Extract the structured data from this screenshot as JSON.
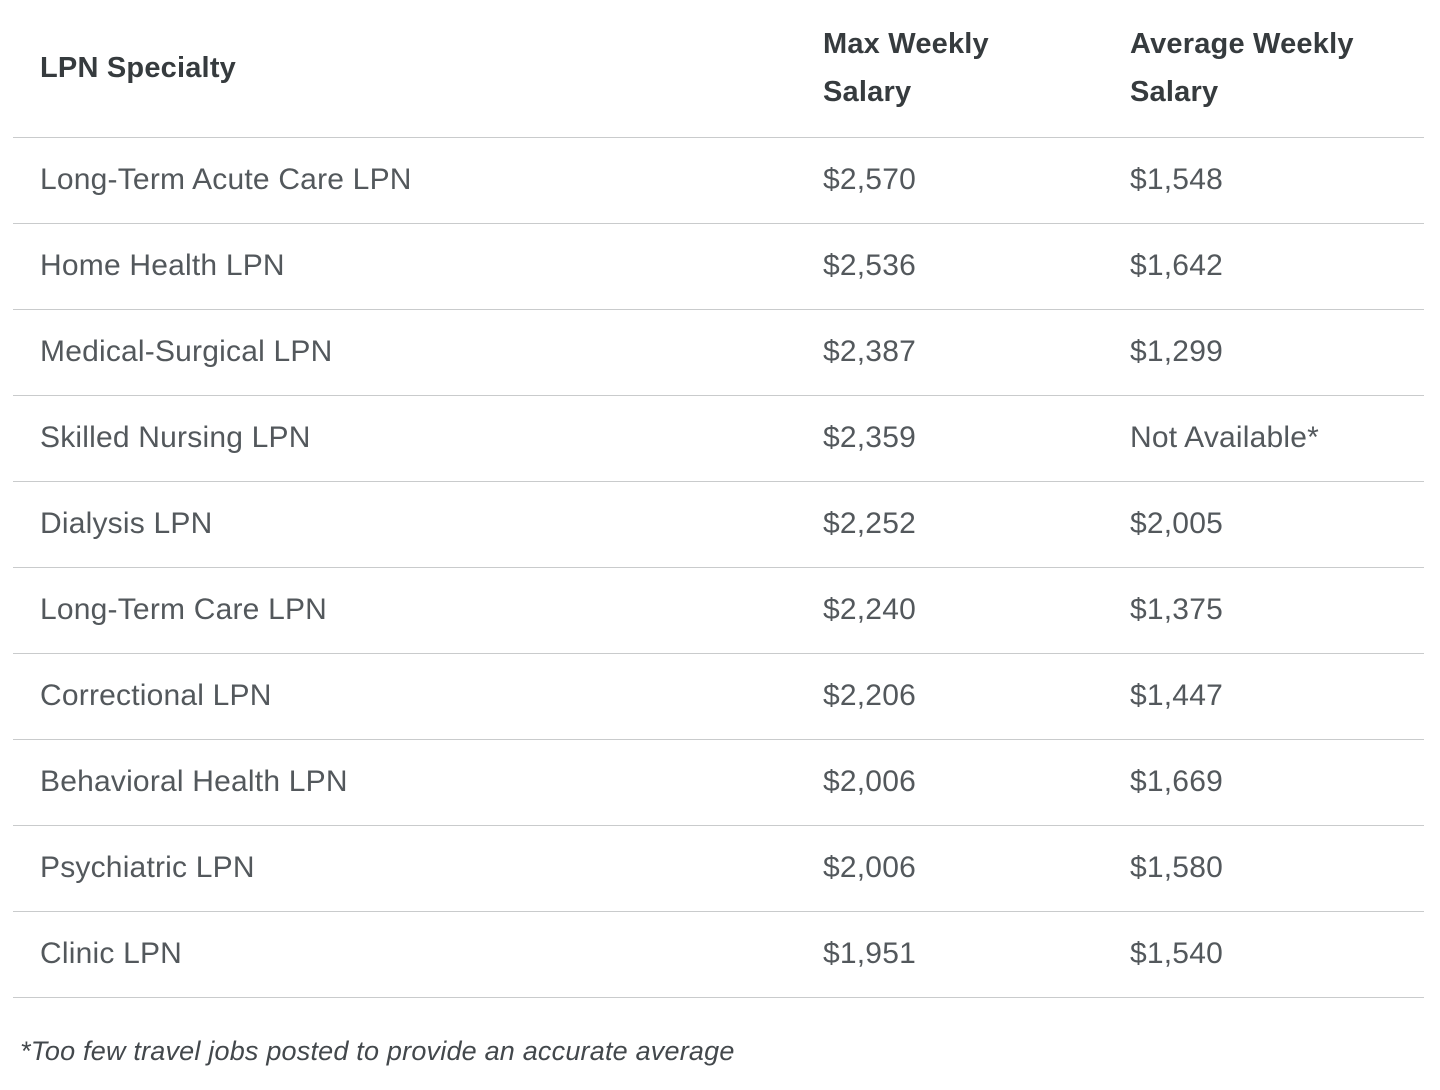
{
  "chart_data": {
    "type": "table",
    "title": "",
    "columns": [
      "LPN Specialty",
      "Max Weekly Salary",
      "Average Weekly Salary"
    ],
    "rows": [
      [
        "Long-Term Acute Care LPN",
        "$2,570",
        "$1,548"
      ],
      [
        "Home Health LPN",
        "$2,536",
        "$1,642"
      ],
      [
        "Medical-Surgical LPN",
        "$2,387",
        "$1,299"
      ],
      [
        "Skilled Nursing LPN",
        "$2,359",
        "Not Available*"
      ],
      [
        "Dialysis LPN",
        "$2,252",
        "$2,005"
      ],
      [
        "Long-Term Care LPN",
        "$2,240",
        "$1,375"
      ],
      [
        "Correctional LPN",
        "$2,206",
        "$1,447"
      ],
      [
        "Behavioral Health LPN",
        "$2,006",
        "$1,669"
      ],
      [
        "Psychiatric LPN",
        "$2,006",
        "$1,580"
      ],
      [
        "Clinic LPN",
        "$1,951",
        "$1,540"
      ]
    ],
    "footnote": "*Too few travel jobs posted to provide an accurate average"
  },
  "table": {
    "header": {
      "col1": "LPN Specialty",
      "col2_line1": "Max Weekly",
      "col2_line2": "Salary",
      "col3_line1": "Average Weekly",
      "col3_line2": "Salary"
    },
    "rows": [
      {
        "specialty": "Long-Term Acute Care LPN",
        "max": "$2,570",
        "avg": "$1,548"
      },
      {
        "specialty": "Home Health LPN",
        "max": "$2,536",
        "avg": "$1,642"
      },
      {
        "specialty": "Medical-Surgical LPN",
        "max": "$2,387",
        "avg": "$1,299"
      },
      {
        "specialty": "Skilled Nursing LPN",
        "max": "$2,359",
        "avg": "Not Available*"
      },
      {
        "specialty": "Dialysis LPN",
        "max": "$2,252",
        "avg": "$2,005"
      },
      {
        "specialty": "Long-Term Care LPN",
        "max": "$2,240",
        "avg": "$1,375"
      },
      {
        "specialty": "Correctional LPN",
        "max": "$2,206",
        "avg": "$1,447"
      },
      {
        "specialty": "Behavioral Health LPN",
        "max": "$2,006",
        "avg": "$1,669"
      },
      {
        "specialty": "Psychiatric LPN",
        "max": "$2,006",
        "avg": "$1,580"
      },
      {
        "specialty": "Clinic LPN",
        "max": "$1,951",
        "avg": "$1,540"
      }
    ]
  },
  "footnote": "*Too few travel jobs posted to provide an accurate average",
  "colors": {
    "header_text": "#363b3e",
    "body_text": "#53585c",
    "footnote_text": "#43484c",
    "divider": "#c9cbcc",
    "background": "#ffffff"
  }
}
